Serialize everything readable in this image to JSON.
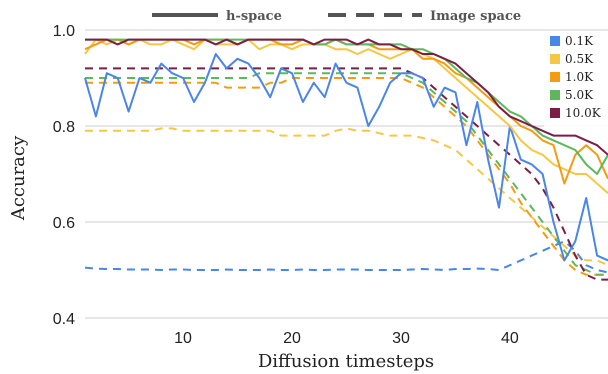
{
  "chart_data": {
    "type": "line",
    "xlabel": "Diffusion timesteps",
    "ylabel": "Accuracy",
    "xlim": [
      1,
      49
    ],
    "ylim": [
      0.4,
      1.0
    ],
    "x_ticks": [
      10,
      20,
      30,
      40
    ],
    "y_ticks": [
      0.4,
      0.6,
      0.8,
      1.0
    ],
    "y_tick_labels": [
      "0.4",
      "0.6",
      "0.8",
      "1.0"
    ],
    "x_tick_labels": [
      "10",
      "20",
      "30",
      "40"
    ],
    "grid": "horizontal",
    "style_legend": {
      "placement": "top",
      "solid_label": "h-space",
      "dashed_label": "Image space"
    },
    "series_legend_placement": "top-right",
    "x": [
      1,
      2,
      3,
      4,
      5,
      6,
      7,
      8,
      9,
      10,
      11,
      12,
      13,
      14,
      15,
      16,
      17,
      18,
      19,
      20,
      21,
      22,
      23,
      24,
      25,
      26,
      27,
      28,
      29,
      30,
      31,
      32,
      33,
      34,
      35,
      36,
      37,
      38,
      39,
      40,
      41,
      42,
      43,
      44,
      45,
      46,
      47,
      48,
      49
    ],
    "series": [
      {
        "name": "0.1K",
        "color": "#4a86e8",
        "h_space": [
          0.9,
          0.82,
          0.91,
          0.9,
          0.83,
          0.9,
          0.89,
          0.93,
          0.91,
          0.9,
          0.85,
          0.89,
          0.95,
          0.92,
          0.94,
          0.93,
          0.9,
          0.86,
          0.92,
          0.91,
          0.85,
          0.89,
          0.86,
          0.93,
          0.89,
          0.88,
          0.8,
          0.84,
          0.89,
          0.91,
          0.91,
          0.9,
          0.84,
          0.88,
          0.87,
          0.76,
          0.85,
          0.73,
          0.63,
          0.8,
          0.73,
          0.72,
          0.7,
          0.6,
          0.52,
          0.56,
          0.65,
          0.53,
          0.52
        ],
        "image_space": [
          0.505,
          0.503,
          0.502,
          0.502,
          0.501,
          0.501,
          0.501,
          0.5,
          0.501,
          0.501,
          0.5,
          0.5,
          0.5,
          0.501,
          0.5,
          0.5,
          0.5,
          0.501,
          0.5,
          0.5,
          0.501,
          0.5,
          0.5,
          0.501,
          0.501,
          0.501,
          0.5,
          0.5,
          0.5,
          0.5,
          0.501,
          0.502,
          0.501,
          0.5,
          0.502,
          0.502,
          0.503,
          0.502,
          0.5,
          0.51,
          0.52,
          0.53,
          0.54,
          0.55,
          0.56,
          0.54,
          0.51,
          0.5,
          0.495
        ]
      },
      {
        "name": "0.5K",
        "color": "#f6c744",
        "h_space": [
          0.95,
          0.98,
          0.97,
          0.98,
          0.97,
          0.98,
          0.97,
          0.97,
          0.98,
          0.97,
          0.96,
          0.98,
          0.97,
          0.97,
          0.97,
          0.98,
          0.96,
          0.97,
          0.97,
          0.96,
          0.97,
          0.97,
          0.97,
          0.96,
          0.96,
          0.95,
          0.96,
          0.95,
          0.94,
          0.95,
          0.96,
          0.95,
          0.94,
          0.92,
          0.9,
          0.88,
          0.86,
          0.84,
          0.82,
          0.8,
          0.77,
          0.75,
          0.74,
          0.72,
          0.71,
          0.7,
          0.7,
          0.68,
          0.66
        ],
        "image_space": [
          0.79,
          0.79,
          0.79,
          0.79,
          0.79,
          0.79,
          0.79,
          0.795,
          0.795,
          0.79,
          0.79,
          0.79,
          0.79,
          0.79,
          0.79,
          0.79,
          0.79,
          0.79,
          0.78,
          0.78,
          0.78,
          0.78,
          0.78,
          0.79,
          0.795,
          0.79,
          0.79,
          0.785,
          0.78,
          0.78,
          0.78,
          0.775,
          0.77,
          0.76,
          0.75,
          0.73,
          0.71,
          0.69,
          0.67,
          0.65,
          0.63,
          0.61,
          0.59,
          0.57,
          0.55,
          0.53,
          0.52,
          0.52,
          0.51
        ]
      },
      {
        "name": "1.0K",
        "color": "#f39c12",
        "h_space": [
          0.96,
          0.97,
          0.98,
          0.98,
          0.97,
          0.98,
          0.98,
          0.98,
          0.98,
          0.98,
          0.97,
          0.98,
          0.98,
          0.98,
          0.97,
          0.98,
          0.98,
          0.98,
          0.97,
          0.97,
          0.98,
          0.97,
          0.97,
          0.98,
          0.97,
          0.97,
          0.97,
          0.96,
          0.96,
          0.96,
          0.96,
          0.94,
          0.94,
          0.93,
          0.91,
          0.9,
          0.88,
          0.86,
          0.84,
          0.82,
          0.8,
          0.79,
          0.77,
          0.76,
          0.68,
          0.74,
          0.76,
          0.74,
          0.69
        ],
        "image_space": [
          0.89,
          0.89,
          0.89,
          0.89,
          0.89,
          0.89,
          0.89,
          0.89,
          0.89,
          0.89,
          0.89,
          0.89,
          0.89,
          0.88,
          0.88,
          0.88,
          0.88,
          0.89,
          0.89,
          0.9,
          0.9,
          0.9,
          0.9,
          0.9,
          0.9,
          0.9,
          0.9,
          0.9,
          0.9,
          0.9,
          0.89,
          0.88,
          0.86,
          0.84,
          0.82,
          0.8,
          0.77,
          0.74,
          0.71,
          0.68,
          0.64,
          0.61,
          0.58,
          0.55,
          0.52,
          0.5,
          0.49,
          0.49,
          0.49
        ]
      },
      {
        "name": "5.0K",
        "color": "#5cb85c",
        "h_space": [
          0.98,
          0.98,
          0.98,
          0.98,
          0.98,
          0.98,
          0.98,
          0.98,
          0.98,
          0.98,
          0.98,
          0.98,
          0.98,
          0.98,
          0.98,
          0.98,
          0.98,
          0.98,
          0.98,
          0.98,
          0.98,
          0.97,
          0.97,
          0.98,
          0.97,
          0.97,
          0.97,
          0.97,
          0.97,
          0.97,
          0.96,
          0.96,
          0.95,
          0.94,
          0.92,
          0.9,
          0.89,
          0.87,
          0.85,
          0.83,
          0.82,
          0.8,
          0.78,
          0.77,
          0.76,
          0.75,
          0.72,
          0.7,
          0.74
        ],
        "image_space": [
          0.9,
          0.9,
          0.9,
          0.9,
          0.9,
          0.9,
          0.9,
          0.9,
          0.9,
          0.9,
          0.9,
          0.9,
          0.9,
          0.9,
          0.9,
          0.9,
          0.91,
          0.91,
          0.91,
          0.91,
          0.91,
          0.91,
          0.91,
          0.91,
          0.91,
          0.91,
          0.91,
          0.91,
          0.91,
          0.91,
          0.9,
          0.89,
          0.87,
          0.85,
          0.83,
          0.81,
          0.78,
          0.75,
          0.72,
          0.69,
          0.66,
          0.63,
          0.6,
          0.57,
          0.54,
          0.51,
          0.5,
          0.49,
          0.49
        ]
      },
      {
        "name": "10.0K",
        "color": "#7b1e47",
        "h_space": [
          0.98,
          0.98,
          0.98,
          0.97,
          0.98,
          0.98,
          0.98,
          0.98,
          0.98,
          0.98,
          0.98,
          0.98,
          0.97,
          0.98,
          0.97,
          0.98,
          0.98,
          0.98,
          0.98,
          0.98,
          0.98,
          0.97,
          0.98,
          0.98,
          0.98,
          0.97,
          0.98,
          0.97,
          0.97,
          0.96,
          0.96,
          0.95,
          0.95,
          0.94,
          0.93,
          0.91,
          0.89,
          0.87,
          0.84,
          0.82,
          0.81,
          0.8,
          0.79,
          0.78,
          0.78,
          0.78,
          0.77,
          0.76,
          0.74
        ],
        "image_space": [
          0.92,
          0.92,
          0.92,
          0.92,
          0.92,
          0.92,
          0.92,
          0.92,
          0.92,
          0.92,
          0.92,
          0.92,
          0.92,
          0.92,
          0.92,
          0.92,
          0.92,
          0.92,
          0.92,
          0.92,
          0.92,
          0.92,
          0.92,
          0.92,
          0.92,
          0.92,
          0.92,
          0.92,
          0.92,
          0.92,
          0.91,
          0.9,
          0.88,
          0.86,
          0.84,
          0.82,
          0.8,
          0.78,
          0.76,
          0.74,
          0.72,
          0.7,
          0.67,
          0.63,
          0.58,
          0.53,
          0.49,
          0.48,
          0.48
        ]
      }
    ]
  }
}
